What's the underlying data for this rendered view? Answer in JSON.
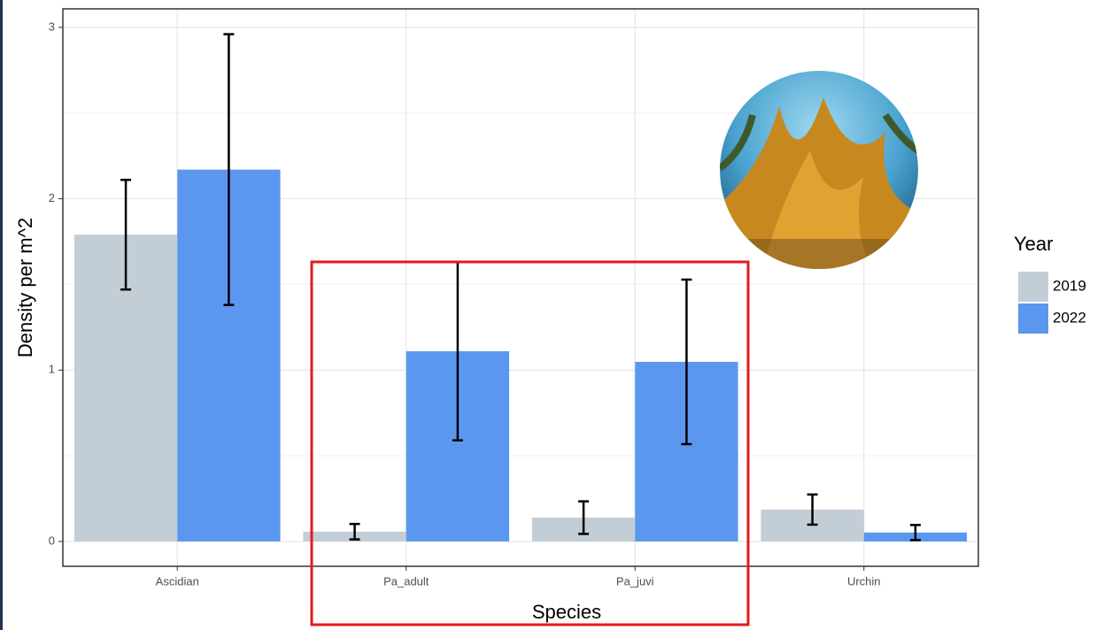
{
  "chart_data": {
    "type": "bar",
    "x_label": "Species",
    "y_label": "Density per m^2",
    "categories": [
      "Ascidian",
      "Pa_adult",
      "Pa_juvi",
      "Urchin"
    ],
    "legend_title": "Year",
    "series": [
      {
        "name": "2019",
        "color": "#c3cdd6",
        "values": [
          1.79,
          0.057,
          0.139,
          0.186
        ],
        "errors": [
          0.32,
          0.045,
          0.095,
          0.088
        ]
      },
      {
        "name": "2022",
        "color": "#5b97ef",
        "values": [
          2.17,
          1.11,
          1.048,
          0.052
        ],
        "errors": [
          0.79,
          0.52,
          0.48,
          0.044
        ]
      }
    ],
    "ylim": [
      -0.145,
      3.108
    ],
    "yticks": [
      0,
      1,
      2,
      3
    ],
    "grid": true,
    "legend": "right"
  }
}
